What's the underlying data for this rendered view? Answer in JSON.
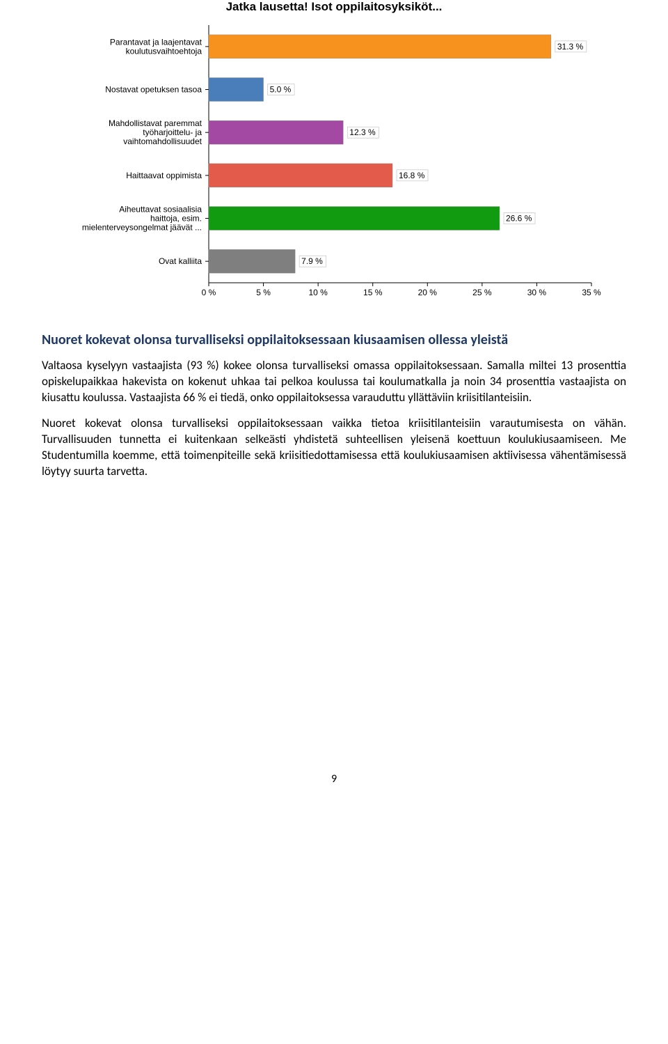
{
  "chart": {
    "title": "Jatka lausetta! Isot oppilaitosyksiköt...",
    "type": "bar_horizontal",
    "xlim_min": 0,
    "xlim_max": 35,
    "xtick_step": 5,
    "xtick_unit": " %",
    "background_color": "#ffffff",
    "axis_color": "#000000",
    "tick_font_size": 12,
    "label_font_size": 12,
    "title_font_size": 17,
    "bars": [
      {
        "label_lines": [
          "Parantavat ja laajentavat",
          "koulutusvaihtoehtoja"
        ],
        "value": 31.3,
        "value_label": "31.3 %",
        "color": "#f7921e"
      },
      {
        "label_lines": [
          "Nostavat opetuksen tasoa"
        ],
        "value": 5.0,
        "value_label": "5.0 %",
        "color": "#4a7ebb"
      },
      {
        "label_lines": [
          "Mahdollistavat paremmat",
          "työharjoittelu- ja",
          "vaihtomahdollisuudet"
        ],
        "value": 12.3,
        "value_label": "12.3 %",
        "color": "#a349a4"
      },
      {
        "label_lines": [
          "Haittaavat oppimista"
        ],
        "value": 16.8,
        "value_label": "16.8 %",
        "color": "#e25b4b"
      },
      {
        "label_lines": [
          "Aiheuttavat sosiaalisia",
          "haittoja, esim.",
          "mielenterveysongelmat jäävät ..."
        ],
        "value": 26.6,
        "value_label": "26.6 %",
        "color": "#119b11"
      },
      {
        "label_lines": [
          "Ovat kalliita"
        ],
        "value": 7.9,
        "value_label": "7.9 %",
        "color": "#7f7f7f"
      }
    ]
  },
  "body": {
    "heading": "Nuoret kokevat olonsa turvalliseksi oppilaitoksessaan kiusaamisen ollessa yleistä",
    "p1": "Valtaosa kyselyyn vastaajista (93 %) kokee olonsa turvalliseksi omassa oppilaitoksessaan. Samalla miltei 13 prosenttia opiskelupaikkaa hakevista on kokenut uhkaa tai pelkoa koulussa tai koulumatkalla ja noin 34 prosenttia vastaajista on kiusattu koulussa. Vastaajista 66 % ei tiedä, onko oppilaitoksessa varauduttu yllättäviin kriisitilanteisiin.",
    "p2": "Nuoret kokevat olonsa turvalliseksi oppilaitoksessaan vaikka tietoa kriisitilanteisiin varautumisesta on vähän. Turvallisuuden tunnetta ei kuitenkaan selkeästi yhdistetä suhteellisen yleisenä koettuun koulukiusaamiseen. Me Studentumilla koemme, että toimenpiteille sekä kriisitiedottamisessa että koulukiusaamisen aktiivisessa vähentämisessä löytyy suurta tarvetta."
  },
  "page_number": "9"
}
